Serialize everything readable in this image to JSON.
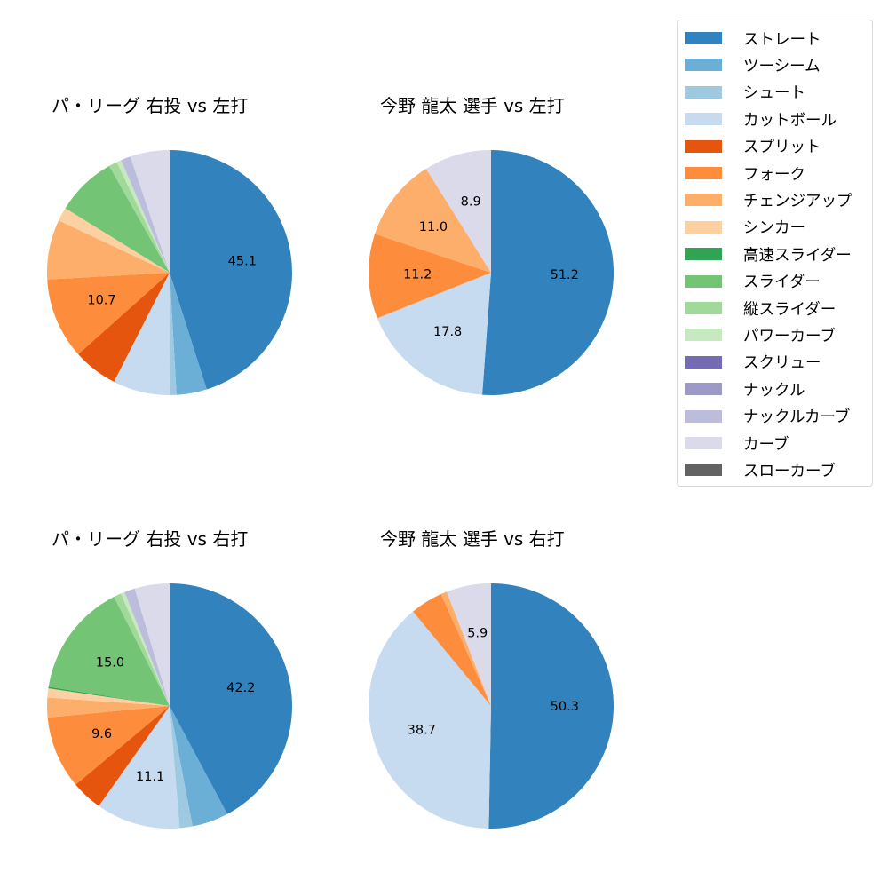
{
  "colors": {
    "ストレート": "#3182bd",
    "ツーシーム": "#6baed6",
    "シュート": "#9ecae1",
    "カットボール": "#c6dbef",
    "スプリット": "#e6550d",
    "フォーク": "#fd8d3c",
    "チェンジアップ": "#fdae6b",
    "シンカー": "#fdd0a2",
    "高速スライダー": "#31a354",
    "スライダー": "#74c476",
    "縦スライダー": "#a1d99b",
    "パワーカーブ": "#c7e9c0",
    "スクリュー": "#756bb1",
    "ナックル": "#9e9ac8",
    "ナックルカーブ": "#bcbddc",
    "カーブ": "#dadaeb",
    "スローカーブ": "#636363"
  },
  "legend": {
    "items": [
      {
        "label": "ストレート",
        "color": "#3182bd"
      },
      {
        "label": "ツーシーム",
        "color": "#6baed6"
      },
      {
        "label": "シュート",
        "color": "#9ecae1"
      },
      {
        "label": "カットボール",
        "color": "#c6dbef"
      },
      {
        "label": "スプリット",
        "color": "#e6550d"
      },
      {
        "label": "フォーク",
        "color": "#fd8d3c"
      },
      {
        "label": "チェンジアップ",
        "color": "#fdae6b"
      },
      {
        "label": "シンカー",
        "color": "#fdd0a2"
      },
      {
        "label": "高速スライダー",
        "color": "#31a354"
      },
      {
        "label": "スライダー",
        "color": "#74c476"
      },
      {
        "label": "縦スライダー",
        "color": "#a1d99b"
      },
      {
        "label": "パワーカーブ",
        "color": "#c7e9c0"
      },
      {
        "label": "スクリュー",
        "color": "#756bb1"
      },
      {
        "label": "ナックル",
        "color": "#9e9ac8"
      },
      {
        "label": "ナックルカーブ",
        "color": "#bcbddc"
      },
      {
        "label": "カーブ",
        "color": "#dadaeb"
      },
      {
        "label": "スローカーブ",
        "color": "#636363"
      }
    ]
  },
  "chart_data": [
    {
      "type": "pie",
      "title": "パ・リーグ 右投 vs 左打",
      "start_angle": 90,
      "direction": "clockwise",
      "label_threshold": 10,
      "slices": [
        {
          "label": "ストレート",
          "value": 45.1,
          "shown": "45.1"
        },
        {
          "label": "ツーシーム",
          "value": 4.0
        },
        {
          "label": "シュート",
          "value": 0.8
        },
        {
          "label": "カットボール",
          "value": 7.6
        },
        {
          "label": "スプリット",
          "value": 5.9
        },
        {
          "label": "フォーク",
          "value": 10.7,
          "shown": "10.7"
        },
        {
          "label": "チェンジアップ",
          "value": 7.9
        },
        {
          "label": "シンカー",
          "value": 1.8
        },
        {
          "label": "スライダー",
          "value": 8.0
        },
        {
          "label": "縦スライダー",
          "value": 1.1
        },
        {
          "label": "パワーカーブ",
          "value": 0.6
        },
        {
          "label": "ナックルカーブ",
          "value": 1.3
        },
        {
          "label": "カーブ",
          "value": 5.2
        }
      ]
    },
    {
      "type": "pie",
      "title": "今野 龍太 選手 vs 左打",
      "start_angle": 90,
      "direction": "clockwise",
      "label_threshold": 5,
      "slices": [
        {
          "label": "ストレート",
          "value": 51.2,
          "shown": "51.2"
        },
        {
          "label": "カットボール",
          "value": 17.8,
          "shown": "17.8"
        },
        {
          "label": "フォーク",
          "value": 11.2,
          "shown": "11.2"
        },
        {
          "label": "チェンジアップ",
          "value": 11.0,
          "shown": "11.0"
        },
        {
          "label": "カーブ",
          "value": 8.9,
          "shown": "8.9"
        }
      ]
    },
    {
      "type": "pie",
      "title": "パ・リーグ 右投 vs 右打",
      "start_angle": 90,
      "direction": "clockwise",
      "label_threshold": 9,
      "slices": [
        {
          "label": "ストレート",
          "value": 42.2,
          "shown": "42.2"
        },
        {
          "label": "ツーシーム",
          "value": 4.8
        },
        {
          "label": "シュート",
          "value": 1.7
        },
        {
          "label": "カットボール",
          "value": 11.1,
          "shown": "11.1"
        },
        {
          "label": "スプリット",
          "value": 4.1
        },
        {
          "label": "フォーク",
          "value": 9.6,
          "shown": "9.6"
        },
        {
          "label": "チェンジアップ",
          "value": 2.6
        },
        {
          "label": "シンカー",
          "value": 1.2
        },
        {
          "label": "高速スライダー",
          "value": 0.2
        },
        {
          "label": "スライダー",
          "value": 15.0,
          "shown": "15.0"
        },
        {
          "label": "縦スライダー",
          "value": 1.0
        },
        {
          "label": "パワーカーブ",
          "value": 0.5
        },
        {
          "label": "ナックルカーブ",
          "value": 1.4
        },
        {
          "label": "カーブ",
          "value": 4.6
        }
      ]
    },
    {
      "type": "pie",
      "title": "今野 龍太 選手 vs 右打",
      "start_angle": 90,
      "direction": "clockwise",
      "label_threshold": 5,
      "slices": [
        {
          "label": "ストレート",
          "value": 50.3,
          "shown": "50.3"
        },
        {
          "label": "カットボール",
          "value": 38.7,
          "shown": "38.7"
        },
        {
          "label": "フォーク",
          "value": 4.3
        },
        {
          "label": "チェンジアップ",
          "value": 0.8
        },
        {
          "label": "カーブ",
          "value": 5.9,
          "shown": "5.9"
        }
      ]
    }
  ]
}
